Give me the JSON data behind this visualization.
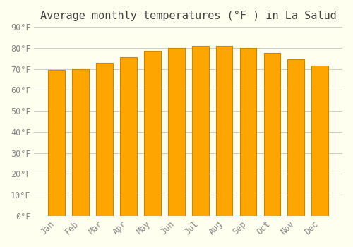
{
  "title": "Average monthly temperatures (°F ) in La Salud",
  "months": [
    "Jan",
    "Feb",
    "Mar",
    "Apr",
    "May",
    "Jun",
    "Jul",
    "Aug",
    "Sep",
    "Oct",
    "Nov",
    "Dec"
  ],
  "values": [
    69.5,
    70.0,
    73.0,
    75.5,
    78.5,
    80.0,
    81.0,
    81.0,
    80.0,
    77.5,
    74.5,
    71.5
  ],
  "bar_color": "#FFA500",
  "bar_edge_color": "#CC8800",
  "background_color": "#FFFFF0",
  "grid_color": "#CCCCCC",
  "ylim": [
    0,
    90
  ],
  "yticks": [
    0,
    10,
    20,
    30,
    40,
    50,
    60,
    70,
    80,
    90
  ],
  "ytick_labels": [
    "0°F",
    "10°F",
    "20°F",
    "30°F",
    "40°F",
    "50°F",
    "60°F",
    "70°F",
    "80°F",
    "90°F"
  ],
  "title_fontsize": 11,
  "tick_fontsize": 8.5,
  "font_family": "monospace"
}
